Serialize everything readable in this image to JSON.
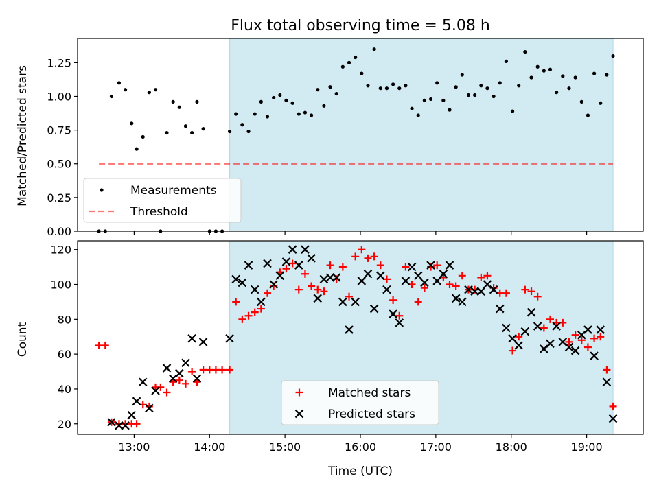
{
  "title": "Flux total observing time = 5.08 h",
  "colors": {
    "shade": "#add8e6",
    "threshold": "#ff0000",
    "measurements": "#000000",
    "matched": "#ff0000",
    "predicted": "#000000"
  },
  "chart_data": [
    {
      "type": "scatter",
      "panel": "top",
      "title": "Flux total observing time = 5.08 h",
      "xlabel": "",
      "ylabel": "Matched/Predicted stars",
      "xlim": [
        "12:15",
        "19:45"
      ],
      "ylim": [
        0,
        1.43
      ],
      "yticks": [
        "0.00",
        "0.25",
        "0.50",
        "0.75",
        "1.00",
        "1.25"
      ],
      "shaded_range": [
        "14:16",
        "19:21"
      ],
      "legend_position": "lower-left",
      "legend": [
        "Measurements",
        "Threshold"
      ],
      "threshold": {
        "name": "Threshold",
        "y": 0.5,
        "x": [
          "12:32",
          "19:21"
        ],
        "style": "dashed"
      },
      "series": [
        {
          "name": "Measurements",
          "marker": "dot",
          "points": [
            [
              "12:32",
              0.0
            ],
            [
              "12:37",
              0.0
            ],
            [
              "12:42",
              1.0
            ],
            [
              "12:48",
              1.1
            ],
            [
              "12:53",
              1.05
            ],
            [
              "12:58",
              0.8
            ],
            [
              "13:02",
              0.61
            ],
            [
              "13:07",
              0.7
            ],
            [
              "13:12",
              1.03
            ],
            [
              "13:17",
              1.05
            ],
            [
              "13:21",
              0.0
            ],
            [
              "13:26",
              0.73
            ],
            [
              "13:31",
              0.96
            ],
            [
              "13:36",
              0.92
            ],
            [
              "13:41",
              0.78
            ],
            [
              "13:46",
              0.73
            ],
            [
              "13:50",
              0.96
            ],
            [
              "13:55",
              0.76
            ],
            [
              "14:00",
              0.0
            ],
            [
              "14:05",
              0.0
            ],
            [
              "14:10",
              0.0
            ],
            [
              "14:16",
              0.74
            ],
            [
              "14:21",
              0.87
            ],
            [
              "14:26",
              0.79
            ],
            [
              "14:31",
              0.74
            ],
            [
              "14:36",
              0.87
            ],
            [
              "14:41",
              0.96
            ],
            [
              "14:46",
              0.85
            ],
            [
              "14:51",
              0.99
            ],
            [
              "14:56",
              1.01
            ],
            [
              "15:01",
              0.97
            ],
            [
              "15:06",
              0.95
            ],
            [
              "15:11",
              0.87
            ],
            [
              "15:16",
              0.88
            ],
            [
              "15:21",
              0.86
            ],
            [
              "15:26",
              1.05
            ],
            [
              "15:31",
              0.93
            ],
            [
              "15:36",
              1.07
            ],
            [
              "15:41",
              1.02
            ],
            [
              "15:46",
              1.22
            ],
            [
              "15:51",
              1.25
            ],
            [
              "15:56",
              1.29
            ],
            [
              "16:01",
              1.17
            ],
            [
              "16:06",
              1.08
            ],
            [
              "16:11",
              1.35
            ],
            [
              "16:16",
              1.06
            ],
            [
              "16:21",
              1.06
            ],
            [
              "16:26",
              1.09
            ],
            [
              "16:31",
              1.06
            ],
            [
              "16:36",
              1.08
            ],
            [
              "16:41",
              0.91
            ],
            [
              "16:46",
              0.86
            ],
            [
              "16:51",
              0.97
            ],
            [
              "16:56",
              0.98
            ],
            [
              "17:01",
              1.1
            ],
            [
              "17:06",
              0.97
            ],
            [
              "17:11",
              0.9
            ],
            [
              "17:16",
              1.07
            ],
            [
              "17:21",
              1.16
            ],
            [
              "17:26",
              1.01
            ],
            [
              "17:31",
              1.01
            ],
            [
              "17:36",
              1.08
            ],
            [
              "17:41",
              1.06
            ],
            [
              "17:46",
              1.0
            ],
            [
              "17:51",
              1.1
            ],
            [
              "17:56",
              1.26
            ],
            [
              "18:01",
              0.89
            ],
            [
              "18:06",
              1.08
            ],
            [
              "18:11",
              1.33
            ],
            [
              "18:16",
              1.14
            ],
            [
              "18:21",
              1.22
            ],
            [
              "18:26",
              1.19
            ],
            [
              "18:31",
              1.2
            ],
            [
              "18:36",
              1.03
            ],
            [
              "18:41",
              1.15
            ],
            [
              "18:46",
              1.06
            ],
            [
              "18:51",
              1.14
            ],
            [
              "18:56",
              0.96
            ],
            [
              "19:01",
              0.86
            ],
            [
              "19:06",
              1.17
            ],
            [
              "19:11",
              0.95
            ],
            [
              "19:16",
              1.16
            ],
            [
              "19:21",
              1.3
            ]
          ]
        }
      ]
    },
    {
      "type": "scatter",
      "panel": "bottom",
      "title": "",
      "xlabel": "Time (UTC)",
      "ylabel": "Count",
      "xlim": [
        "12:15",
        "19:45"
      ],
      "ylim": [
        14,
        125
      ],
      "xticks": [
        "13:00",
        "14:00",
        "15:00",
        "16:00",
        "17:00",
        "18:00",
        "19:00"
      ],
      "yticks": [
        "20",
        "40",
        "60",
        "80",
        "100",
        "120"
      ],
      "shaded_range": [
        "14:16",
        "19:21"
      ],
      "legend_position": "lower-center",
      "legend": [
        "Matched stars",
        "Predicted stars"
      ],
      "series": [
        {
          "name": "Matched stars",
          "marker": "plus",
          "points": [
            [
              "12:32",
              65
            ],
            [
              "12:37",
              65
            ],
            [
              "12:42",
              21
            ],
            [
              "12:48",
              20
            ],
            [
              "12:53",
              20
            ],
            [
              "12:58",
              20
            ],
            [
              "13:02",
              20
            ],
            [
              "13:07",
              31
            ],
            [
              "13:12",
              30
            ],
            [
              "13:17",
              41
            ],
            [
              "13:21",
              41
            ],
            [
              "13:26",
              38
            ],
            [
              "13:31",
              44
            ],
            [
              "13:36",
              45
            ],
            [
              "13:41",
              43
            ],
            [
              "13:46",
              50
            ],
            [
              "13:50",
              44
            ],
            [
              "13:55",
              51
            ],
            [
              "14:00",
              51
            ],
            [
              "14:05",
              51
            ],
            [
              "14:10",
              51
            ],
            [
              "14:16",
              51
            ],
            [
              "14:21",
              90
            ],
            [
              "14:26",
              80
            ],
            [
              "14:31",
              82
            ],
            [
              "14:36",
              84
            ],
            [
              "14:41",
              86
            ],
            [
              "14:46",
              95
            ],
            [
              "14:51",
              99
            ],
            [
              "14:56",
              107
            ],
            [
              "15:01",
              109
            ],
            [
              "15:06",
              112
            ],
            [
              "15:11",
              97
            ],
            [
              "15:16",
              106
            ],
            [
              "15:21",
              99
            ],
            [
              "15:26",
              97
            ],
            [
              "15:31",
              96
            ],
            [
              "15:36",
              111
            ],
            [
              "15:41",
              103
            ],
            [
              "15:46",
              110
            ],
            [
              "15:51",
              93
            ],
            [
              "15:56",
              116
            ],
            [
              "16:01",
              120
            ],
            [
              "16:06",
              115
            ],
            [
              "16:11",
              116
            ],
            [
              "16:16",
              111
            ],
            [
              "16:21",
              103
            ],
            [
              "16:26",
              91
            ],
            [
              "16:31",
              82
            ],
            [
              "16:36",
              110
            ],
            [
              "16:41",
              100
            ],
            [
              "16:46",
              90
            ],
            [
              "16:51",
              98
            ],
            [
              "16:56",
              110
            ],
            [
              "17:01",
              111
            ],
            [
              "17:06",
              104
            ],
            [
              "17:11",
              100
            ],
            [
              "17:16",
              99
            ],
            [
              "17:21",
              105
            ],
            [
              "17:26",
              97
            ],
            [
              "17:31",
              97
            ],
            [
              "17:36",
              104
            ],
            [
              "17:41",
              105
            ],
            [
              "17:46",
              98
            ],
            [
              "17:51",
              95
            ],
            [
              "17:56",
              95
            ],
            [
              "18:01",
              62
            ],
            [
              "18:06",
              70
            ],
            [
              "18:11",
              97
            ],
            [
              "18:16",
              96
            ],
            [
              "18:21",
              93
            ],
            [
              "18:26",
              75
            ],
            [
              "18:31",
              80
            ],
            [
              "18:36",
              78
            ],
            [
              "18:41",
              78
            ],
            [
              "18:46",
              67
            ],
            [
              "18:51",
              71
            ],
            [
              "18:56",
              68
            ],
            [
              "19:01",
              64
            ],
            [
              "19:06",
              69
            ],
            [
              "19:11",
              70
            ],
            [
              "19:16",
              51
            ],
            [
              "19:21",
              30
            ]
          ]
        },
        {
          "name": "Predicted stars",
          "marker": "x",
          "points": [
            [
              "12:42",
              21
            ],
            [
              "12:48",
              19
            ],
            [
              "12:53",
              19
            ],
            [
              "12:58",
              25
            ],
            [
              "13:02",
              33
            ],
            [
              "13:07",
              44
            ],
            [
              "13:12",
              29
            ],
            [
              "13:17",
              39
            ],
            [
              "13:26",
              52
            ],
            [
              "13:31",
              46
            ],
            [
              "13:36",
              49
            ],
            [
              "13:41",
              55
            ],
            [
              "13:46",
              69
            ],
            [
              "13:50",
              46
            ],
            [
              "13:55",
              67
            ],
            [
              "14:16",
              69
            ],
            [
              "14:21",
              103
            ],
            [
              "14:26",
              101
            ],
            [
              "14:31",
              111
            ],
            [
              "14:36",
              97
            ],
            [
              "14:41",
              90
            ],
            [
              "14:46",
              112
            ],
            [
              "14:51",
              100
            ],
            [
              "14:56",
              105
            ],
            [
              "15:01",
              113
            ],
            [
              "15:06",
              120
            ],
            [
              "15:11",
              111
            ],
            [
              "15:16",
              120
            ],
            [
              "15:21",
              115
            ],
            [
              "15:26",
              92
            ],
            [
              "15:31",
              103
            ],
            [
              "15:36",
              104
            ],
            [
              "15:41",
              104
            ],
            [
              "15:46",
              90
            ],
            [
              "15:51",
              74
            ],
            [
              "15:56",
              90
            ],
            [
              "16:01",
              102
            ],
            [
              "16:06",
              106
            ],
            [
              "16:11",
              86
            ],
            [
              "16:16",
              105
            ],
            [
              "16:21",
              97
            ],
            [
              "16:26",
              83
            ],
            [
              "16:31",
              78
            ],
            [
              "16:36",
              102
            ],
            [
              "16:41",
              110
            ],
            [
              "16:46",
              105
            ],
            [
              "16:51",
              101
            ],
            [
              "16:56",
              111
            ],
            [
              "17:01",
              102
            ],
            [
              "17:06",
              106
            ],
            [
              "17:11",
              111
            ],
            [
              "17:16",
              92
            ],
            [
              "17:21",
              90
            ],
            [
              "17:26",
              97
            ],
            [
              "17:31",
              96
            ],
            [
              "17:36",
              96
            ],
            [
              "17:41",
              100
            ],
            [
              "17:46",
              97
            ],
            [
              "17:51",
              86
            ],
            [
              "17:56",
              75
            ],
            [
              "18:01",
              69
            ],
            [
              "18:06",
              65
            ],
            [
              "18:11",
              73
            ],
            [
              "18:16",
              84
            ],
            [
              "18:21",
              76
            ],
            [
              "18:26",
              63
            ],
            [
              "18:31",
              66
            ],
            [
              "18:36",
              76
            ],
            [
              "18:41",
              67
            ],
            [
              "18:46",
              64
            ],
            [
              "18:51",
              62
            ],
            [
              "18:56",
              71
            ],
            [
              "19:01",
              74
            ],
            [
              "19:06",
              59
            ],
            [
              "19:11",
              74
            ],
            [
              "19:16",
              44
            ],
            [
              "19:21",
              23
            ]
          ]
        }
      ]
    }
  ]
}
